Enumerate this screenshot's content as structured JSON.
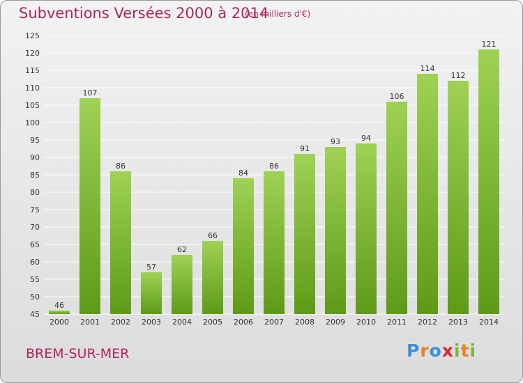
{
  "header": {
    "title": "Subventions Versées 2000 à 2014",
    "subtitle": "(en milliers d'€)"
  },
  "footer": {
    "location": "BREM-SUR-MER",
    "logo_text": "Proxiti",
    "logo_letters": [
      "P",
      "r",
      "o",
      "x",
      "i",
      "t",
      "i"
    ],
    "logo_colors": [
      "#3a8fd8",
      "#e8821e",
      "#3a8fd8",
      "#d8282d",
      "#7ab83a",
      "#e8821e",
      "#7ab83a"
    ]
  },
  "colors": {
    "title": "#b0245f",
    "bar_light": "#9fd155",
    "bar_dark": "#5e9a17",
    "grid": "#ffffff",
    "axis_text": "#333333"
  },
  "chart_data": {
    "type": "bar",
    "title": "Subventions Versées 2000 à 2014",
    "subtitle": "(en milliers d'€)",
    "xlabel": "",
    "ylabel": "",
    "ylim": [
      45,
      125
    ],
    "ytick_step": 5,
    "grid": true,
    "categories": [
      "2000",
      "2001",
      "2002",
      "2003",
      "2004",
      "2005",
      "2006",
      "2007",
      "2008",
      "2009",
      "2010",
      "2011",
      "2012",
      "2013",
      "2014"
    ],
    "values": [
      46,
      107,
      86,
      57,
      62,
      66,
      84,
      86,
      91,
      93,
      94,
      106,
      114,
      112,
      121
    ]
  }
}
